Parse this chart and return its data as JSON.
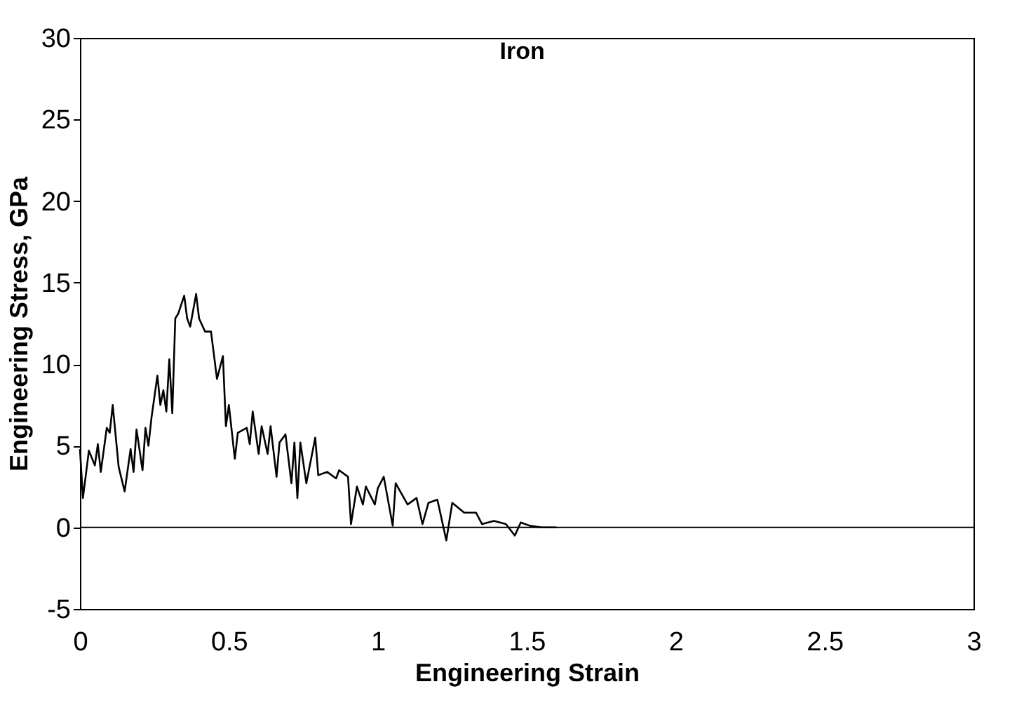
{
  "chart_data": {
    "type": "line",
    "title": "Iron",
    "xlabel": "Engineering Strain",
    "ylabel": "Engineering Stress, GPa",
    "xlim": [
      0,
      3
    ],
    "xticks": [
      0,
      0.5,
      1,
      1.5,
      2,
      2.5,
      3
    ],
    "ylim": [
      -5,
      30
    ],
    "yticks": [
      -5,
      0,
      5,
      10,
      15,
      20,
      25,
      30
    ],
    "marker": "none",
    "line_style": "solid",
    "ref_lines": [
      {
        "axis": "y",
        "value": 0,
        "color": "#000000"
      }
    ],
    "series": [
      {
        "color": "#000000",
        "x": [
          0,
          0.01,
          0.03,
          0.05,
          0.06,
          0.07,
          0.09,
          0.1,
          0.11,
          0.13,
          0.15,
          0.17,
          0.18,
          0.19,
          0.21,
          0.22,
          0.23,
          0.24,
          0.26,
          0.27,
          0.28,
          0.29,
          0.3,
          0.31,
          0.32,
          0.33,
          0.35,
          0.36,
          0.37,
          0.39,
          0.4,
          0.42,
          0.44,
          0.46,
          0.48,
          0.49,
          0.5,
          0.52,
          0.53,
          0.56,
          0.57,
          0.58,
          0.6,
          0.61,
          0.63,
          0.64,
          0.66,
          0.67,
          0.69,
          0.71,
          0.72,
          0.73,
          0.74,
          0.76,
          0.79,
          0.8,
          0.83,
          0.86,
          0.87,
          0.9,
          0.91,
          0.93,
          0.95,
          0.96,
          0.99,
          1.0,
          1.02,
          1.05,
          1.06,
          1.1,
          1.13,
          1.15,
          1.17,
          1.2,
          1.23,
          1.25,
          1.29,
          1.33,
          1.35,
          1.39,
          1.43,
          1.46,
          1.48,
          1.51,
          1.55,
          1.6
        ],
        "values": [
          4.8,
          1.8,
          4.7,
          3.8,
          5.1,
          3.4,
          6.1,
          5.8,
          7.5,
          3.7,
          2.2,
          4.8,
          3.4,
          6.0,
          3.5,
          6.1,
          5.0,
          6.7,
          9.3,
          7.5,
          8.4,
          7.1,
          10.3,
          7.0,
          12.8,
          13.1,
          14.2,
          12.8,
          12.3,
          14.3,
          12.8,
          12.0,
          12.0,
          9.1,
          10.5,
          6.2,
          7.5,
          4.2,
          5.8,
          6.1,
          5.1,
          7.1,
          4.5,
          6.2,
          4.5,
          6.2,
          3.1,
          5.2,
          5.7,
          2.7,
          5.2,
          1.8,
          5.2,
          2.7,
          5.5,
          3.2,
          3.4,
          3.0,
          3.5,
          3.1,
          0.2,
          2.5,
          1.4,
          2.5,
          1.4,
          2.4,
          3.1,
          0.1,
          2.7,
          1.4,
          1.8,
          0.2,
          1.5,
          1.7,
          -0.8,
          1.5,
          0.9,
          0.9,
          0.2,
          0.4,
          0.2,
          -0.5,
          0.3,
          0.1,
          0.0,
          0.0
        ]
      }
    ]
  }
}
